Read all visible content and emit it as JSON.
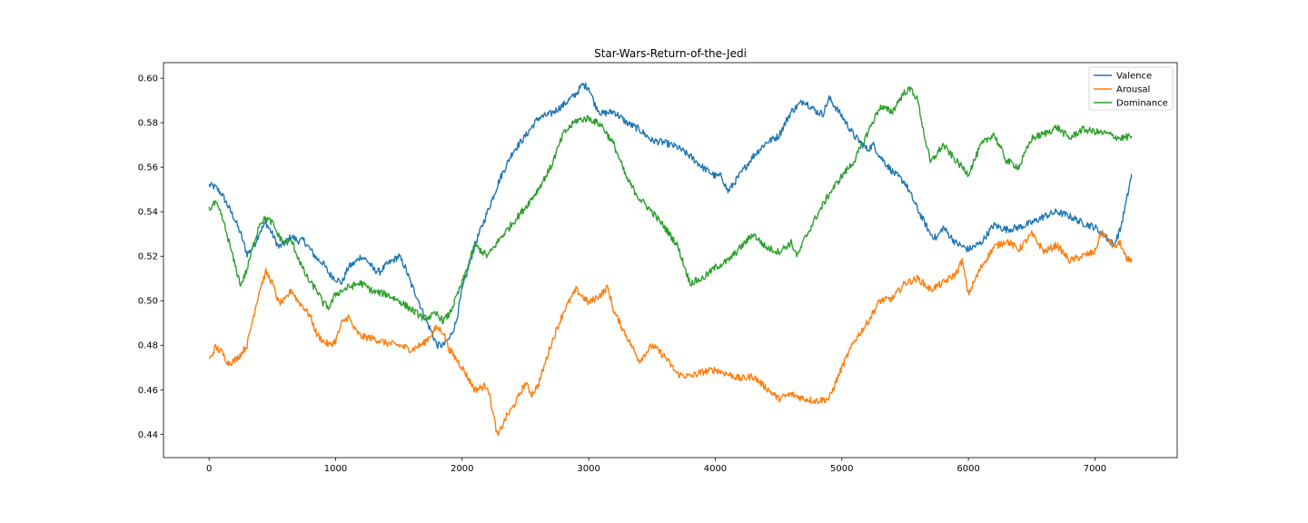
{
  "chart_data": {
    "type": "line",
    "title": "Star-Wars-Return-of-the-Jedi",
    "xlabel": "",
    "ylabel": "",
    "xlim": [
      -360,
      7650
    ],
    "ylim": [
      0.4295,
      0.607
    ],
    "xticks": [
      0,
      1000,
      2000,
      3000,
      4000,
      5000,
      6000,
      7000
    ],
    "xtick_labels": [
      "0",
      "1000",
      "2000",
      "3000",
      "4000",
      "5000",
      "6000",
      "7000"
    ],
    "yticks": [
      0.44,
      0.46,
      0.48,
      0.5,
      0.52,
      0.54,
      0.56,
      0.58,
      0.6
    ],
    "ytick_labels": [
      "0.44",
      "0.46",
      "0.48",
      "0.50",
      "0.52",
      "0.54",
      "0.56",
      "0.58",
      "0.60"
    ],
    "grid": false,
    "legend_position": "upper right",
    "series": [
      {
        "name": "Valence",
        "color": "#1f77b4",
        "x": [
          0,
          50,
          100,
          200,
          250,
          300,
          350,
          400,
          450,
          500,
          550,
          600,
          650,
          700,
          750,
          800,
          850,
          900,
          950,
          1000,
          1050,
          1100,
          1150,
          1200,
          1250,
          1300,
          1350,
          1400,
          1450,
          1500,
          1550,
          1600,
          1650,
          1700,
          1750,
          1800,
          1850,
          1900,
          1950,
          2000,
          2100,
          2200,
          2300,
          2400,
          2500,
          2600,
          2700,
          2800,
          2900,
          2950,
          3000,
          3050,
          3100,
          3200,
          3300,
          3400,
          3500,
          3600,
          3700,
          3800,
          3900,
          4000,
          4050,
          4100,
          4200,
          4300,
          4400,
          4500,
          4600,
          4700,
          4800,
          4850,
          4900,
          5000,
          5100,
          5200,
          5250,
          5300,
          5400,
          5500,
          5600,
          5700,
          5750,
          5800,
          5900,
          6000,
          6100,
          6200,
          6300,
          6400,
          6500,
          6600,
          6700,
          6800,
          6900,
          7000,
          7100,
          7150,
          7200,
          7250,
          7290
        ],
        "values": [
          0.552,
          0.551,
          0.548,
          0.537,
          0.53,
          0.521,
          0.524,
          0.531,
          0.535,
          0.53,
          0.524,
          0.526,
          0.529,
          0.527,
          0.527,
          0.523,
          0.519,
          0.517,
          0.512,
          0.51,
          0.508,
          0.515,
          0.517,
          0.52,
          0.518,
          0.514,
          0.513,
          0.516,
          0.518,
          0.52,
          0.515,
          0.507,
          0.501,
          0.493,
          0.487,
          0.48,
          0.48,
          0.483,
          0.49,
          0.505,
          0.525,
          0.54,
          0.555,
          0.567,
          0.574,
          0.582,
          0.584,
          0.588,
          0.593,
          0.597,
          0.596,
          0.588,
          0.584,
          0.585,
          0.58,
          0.577,
          0.572,
          0.571,
          0.569,
          0.565,
          0.56,
          0.556,
          0.556,
          0.549,
          0.557,
          0.565,
          0.571,
          0.574,
          0.585,
          0.59,
          0.585,
          0.584,
          0.591,
          0.583,
          0.574,
          0.568,
          0.57,
          0.565,
          0.558,
          0.553,
          0.541,
          0.53,
          0.528,
          0.533,
          0.526,
          0.523,
          0.526,
          0.534,
          0.532,
          0.533,
          0.535,
          0.538,
          0.54,
          0.538,
          0.535,
          0.533,
          0.528,
          0.525,
          0.532,
          0.545,
          0.557
        ]
      },
      {
        "name": "Arousal",
        "color": "#ff7f0e",
        "x": [
          0,
          50,
          100,
          150,
          200,
          250,
          300,
          350,
          400,
          450,
          500,
          550,
          600,
          650,
          700,
          750,
          800,
          850,
          900,
          950,
          1000,
          1050,
          1100,
          1150,
          1200,
          1300,
          1400,
          1500,
          1600,
          1700,
          1800,
          1850,
          1900,
          2000,
          2100,
          2200,
          2280,
          2350,
          2400,
          2500,
          2550,
          2600,
          2700,
          2800,
          2850,
          2900,
          3000,
          3100,
          3150,
          3200,
          3300,
          3400,
          3500,
          3600,
          3700,
          3800,
          3900,
          4000,
          4100,
          4200,
          4300,
          4400,
          4500,
          4600,
          4700,
          4800,
          4900,
          5000,
          5100,
          5200,
          5300,
          5400,
          5500,
          5600,
          5700,
          5800,
          5900,
          5950,
          6000,
          6100,
          6200,
          6300,
          6400,
          6500,
          6600,
          6700,
          6800,
          6900,
          7000,
          7050,
          7100,
          7150,
          7200,
          7250,
          7290
        ],
        "values": [
          0.473,
          0.479,
          0.477,
          0.472,
          0.473,
          0.476,
          0.48,
          0.493,
          0.505,
          0.513,
          0.508,
          0.499,
          0.5,
          0.505,
          0.5,
          0.497,
          0.493,
          0.485,
          0.482,
          0.48,
          0.482,
          0.49,
          0.493,
          0.487,
          0.484,
          0.483,
          0.481,
          0.48,
          0.478,
          0.481,
          0.488,
          0.486,
          0.478,
          0.47,
          0.46,
          0.462,
          0.439,
          0.448,
          0.452,
          0.463,
          0.458,
          0.462,
          0.48,
          0.495,
          0.5,
          0.505,
          0.499,
          0.503,
          0.506,
          0.495,
          0.484,
          0.473,
          0.48,
          0.475,
          0.467,
          0.466,
          0.468,
          0.469,
          0.467,
          0.465,
          0.466,
          0.461,
          0.456,
          0.458,
          0.456,
          0.455,
          0.456,
          0.47,
          0.482,
          0.49,
          0.5,
          0.501,
          0.508,
          0.51,
          0.505,
          0.508,
          0.512,
          0.518,
          0.503,
          0.515,
          0.524,
          0.527,
          0.523,
          0.53,
          0.522,
          0.525,
          0.518,
          0.52,
          0.522,
          0.531,
          0.528,
          0.524,
          0.526,
          0.518,
          0.519
        ]
      },
      {
        "name": "Dominance",
        "color": "#2ca02c",
        "x": [
          0,
          50,
          100,
          150,
          200,
          250,
          300,
          350,
          400,
          450,
          500,
          550,
          600,
          650,
          700,
          750,
          800,
          850,
          900,
          950,
          1000,
          1100,
          1200,
          1300,
          1400,
          1500,
          1600,
          1700,
          1800,
          1850,
          1900,
          2000,
          2100,
          2200,
          2300,
          2400,
          2500,
          2600,
          2700,
          2800,
          2900,
          3000,
          3100,
          3200,
          3300,
          3400,
          3500,
          3600,
          3700,
          3800,
          3900,
          4000,
          4100,
          4200,
          4300,
          4400,
          4500,
          4600,
          4650,
          4700,
          4800,
          4900,
          5000,
          5100,
          5200,
          5300,
          5400,
          5450,
          5500,
          5550,
          5600,
          5650,
          5700,
          5800,
          5900,
          6000,
          6100,
          6200,
          6300,
          6400,
          6500,
          6600,
          6700,
          6800,
          6900,
          7000,
          7100,
          7200,
          7290
        ],
        "values": [
          0.541,
          0.544,
          0.538,
          0.528,
          0.517,
          0.507,
          0.514,
          0.525,
          0.535,
          0.537,
          0.535,
          0.529,
          0.526,
          0.527,
          0.52,
          0.513,
          0.508,
          0.505,
          0.499,
          0.497,
          0.503,
          0.506,
          0.508,
          0.504,
          0.503,
          0.5,
          0.496,
          0.492,
          0.494,
          0.491,
          0.494,
          0.508,
          0.525,
          0.52,
          0.528,
          0.535,
          0.542,
          0.55,
          0.56,
          0.575,
          0.581,
          0.582,
          0.579,
          0.57,
          0.555,
          0.546,
          0.54,
          0.533,
          0.525,
          0.508,
          0.51,
          0.515,
          0.518,
          0.524,
          0.53,
          0.524,
          0.522,
          0.526,
          0.52,
          0.527,
          0.538,
          0.548,
          0.556,
          0.563,
          0.575,
          0.587,
          0.585,
          0.59,
          0.594,
          0.595,
          0.59,
          0.575,
          0.562,
          0.57,
          0.563,
          0.557,
          0.57,
          0.575,
          0.563,
          0.56,
          0.573,
          0.575,
          0.578,
          0.573,
          0.577,
          0.576,
          0.575,
          0.573,
          0.574
        ]
      }
    ]
  }
}
